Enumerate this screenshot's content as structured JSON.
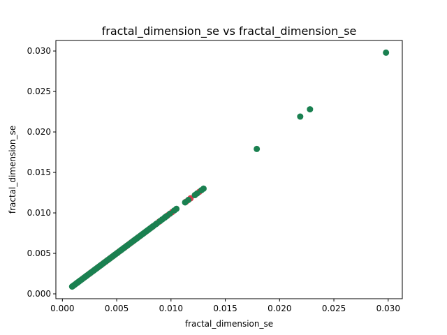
{
  "chart_data": {
    "type": "scatter",
    "title": "fractal_dimension_se vs fractal_dimension_se",
    "xlabel": "fractal_dimension_se",
    "ylabel": "fractal_dimension_se",
    "xlim": [
      -0.0006,
      0.0313
    ],
    "ylim": [
      -0.0006,
      0.0313
    ],
    "xticks": [
      0.0,
      0.005,
      0.01,
      0.015,
      0.02,
      0.025,
      0.03
    ],
    "xtick_labels": [
      "0.000",
      "0.005",
      "0.010",
      "0.015",
      "0.020",
      "0.025",
      "0.030"
    ],
    "yticks": [
      0.0,
      0.005,
      0.01,
      0.015,
      0.02,
      0.025,
      0.03
    ],
    "ytick_labels": [
      "0.000",
      "0.005",
      "0.010",
      "0.015",
      "0.020",
      "0.025",
      "0.030"
    ],
    "grid": false,
    "series": [
      {
        "color": "#d7384b",
        "x": [
          0.0014,
          0.0019,
          0.0024,
          0.0027,
          0.0033,
          0.0037,
          0.0039,
          0.0041,
          0.0045,
          0.0052,
          0.0058,
          0.0061,
          0.0063,
          0.0065,
          0.0071,
          0.0076,
          0.0082,
          0.0089,
          0.0097,
          0.0101,
          0.0114,
          0.0118,
          0.0126
        ],
        "y": [
          0.0014,
          0.0019,
          0.0024,
          0.0027,
          0.0033,
          0.0037,
          0.0039,
          0.0041,
          0.0045,
          0.0052,
          0.0058,
          0.0061,
          0.0063,
          0.0065,
          0.0071,
          0.0076,
          0.0082,
          0.0089,
          0.0097,
          0.0101,
          0.0114,
          0.0118,
          0.0126
        ]
      },
      {
        "color": "#1a8050",
        "x": [
          0.0009,
          0.001,
          0.0011,
          0.0012,
          0.0013,
          0.0014,
          0.0015,
          0.0016,
          0.0017,
          0.0018,
          0.002,
          0.0021,
          0.0022,
          0.0023,
          0.0025,
          0.0026,
          0.0028,
          0.0029,
          0.003,
          0.0031,
          0.0032,
          0.0034,
          0.0035,
          0.0036,
          0.0038,
          0.004,
          0.0042,
          0.0043,
          0.0044,
          0.0046,
          0.0047,
          0.0048,
          0.0049,
          0.005,
          0.0051,
          0.0053,
          0.0054,
          0.0055,
          0.0056,
          0.0057,
          0.0059,
          0.006,
          0.0062,
          0.0064,
          0.0066,
          0.0067,
          0.0068,
          0.0069,
          0.007,
          0.0072,
          0.0073,
          0.0074,
          0.0075,
          0.0077,
          0.0078,
          0.0079,
          0.008,
          0.0081,
          0.0083,
          0.0084,
          0.0086,
          0.0087,
          0.009,
          0.0092,
          0.0094,
          0.0095,
          0.0096,
          0.0099,
          0.0103,
          0.0105,
          0.0113,
          0.0116,
          0.0122,
          0.0124,
          0.0128,
          0.013,
          0.0179,
          0.0219,
          0.0228,
          0.0298
        ],
        "y": [
          0.0009,
          0.001,
          0.0011,
          0.0012,
          0.0013,
          0.0014,
          0.0015,
          0.0016,
          0.0017,
          0.0018,
          0.002,
          0.0021,
          0.0022,
          0.0023,
          0.0025,
          0.0026,
          0.0028,
          0.0029,
          0.003,
          0.0031,
          0.0032,
          0.0034,
          0.0035,
          0.0036,
          0.0038,
          0.004,
          0.0042,
          0.0043,
          0.0044,
          0.0046,
          0.0047,
          0.0048,
          0.0049,
          0.005,
          0.0051,
          0.0053,
          0.0054,
          0.0055,
          0.0056,
          0.0057,
          0.0059,
          0.006,
          0.0062,
          0.0064,
          0.0066,
          0.0067,
          0.0068,
          0.0069,
          0.007,
          0.0072,
          0.0073,
          0.0074,
          0.0075,
          0.0077,
          0.0078,
          0.0079,
          0.008,
          0.0081,
          0.0083,
          0.0084,
          0.0086,
          0.0087,
          0.009,
          0.0092,
          0.0094,
          0.0095,
          0.0096,
          0.0099,
          0.0103,
          0.0105,
          0.0113,
          0.0116,
          0.0122,
          0.0124,
          0.0128,
          0.013,
          0.0179,
          0.0219,
          0.0228,
          0.0298
        ]
      }
    ]
  }
}
